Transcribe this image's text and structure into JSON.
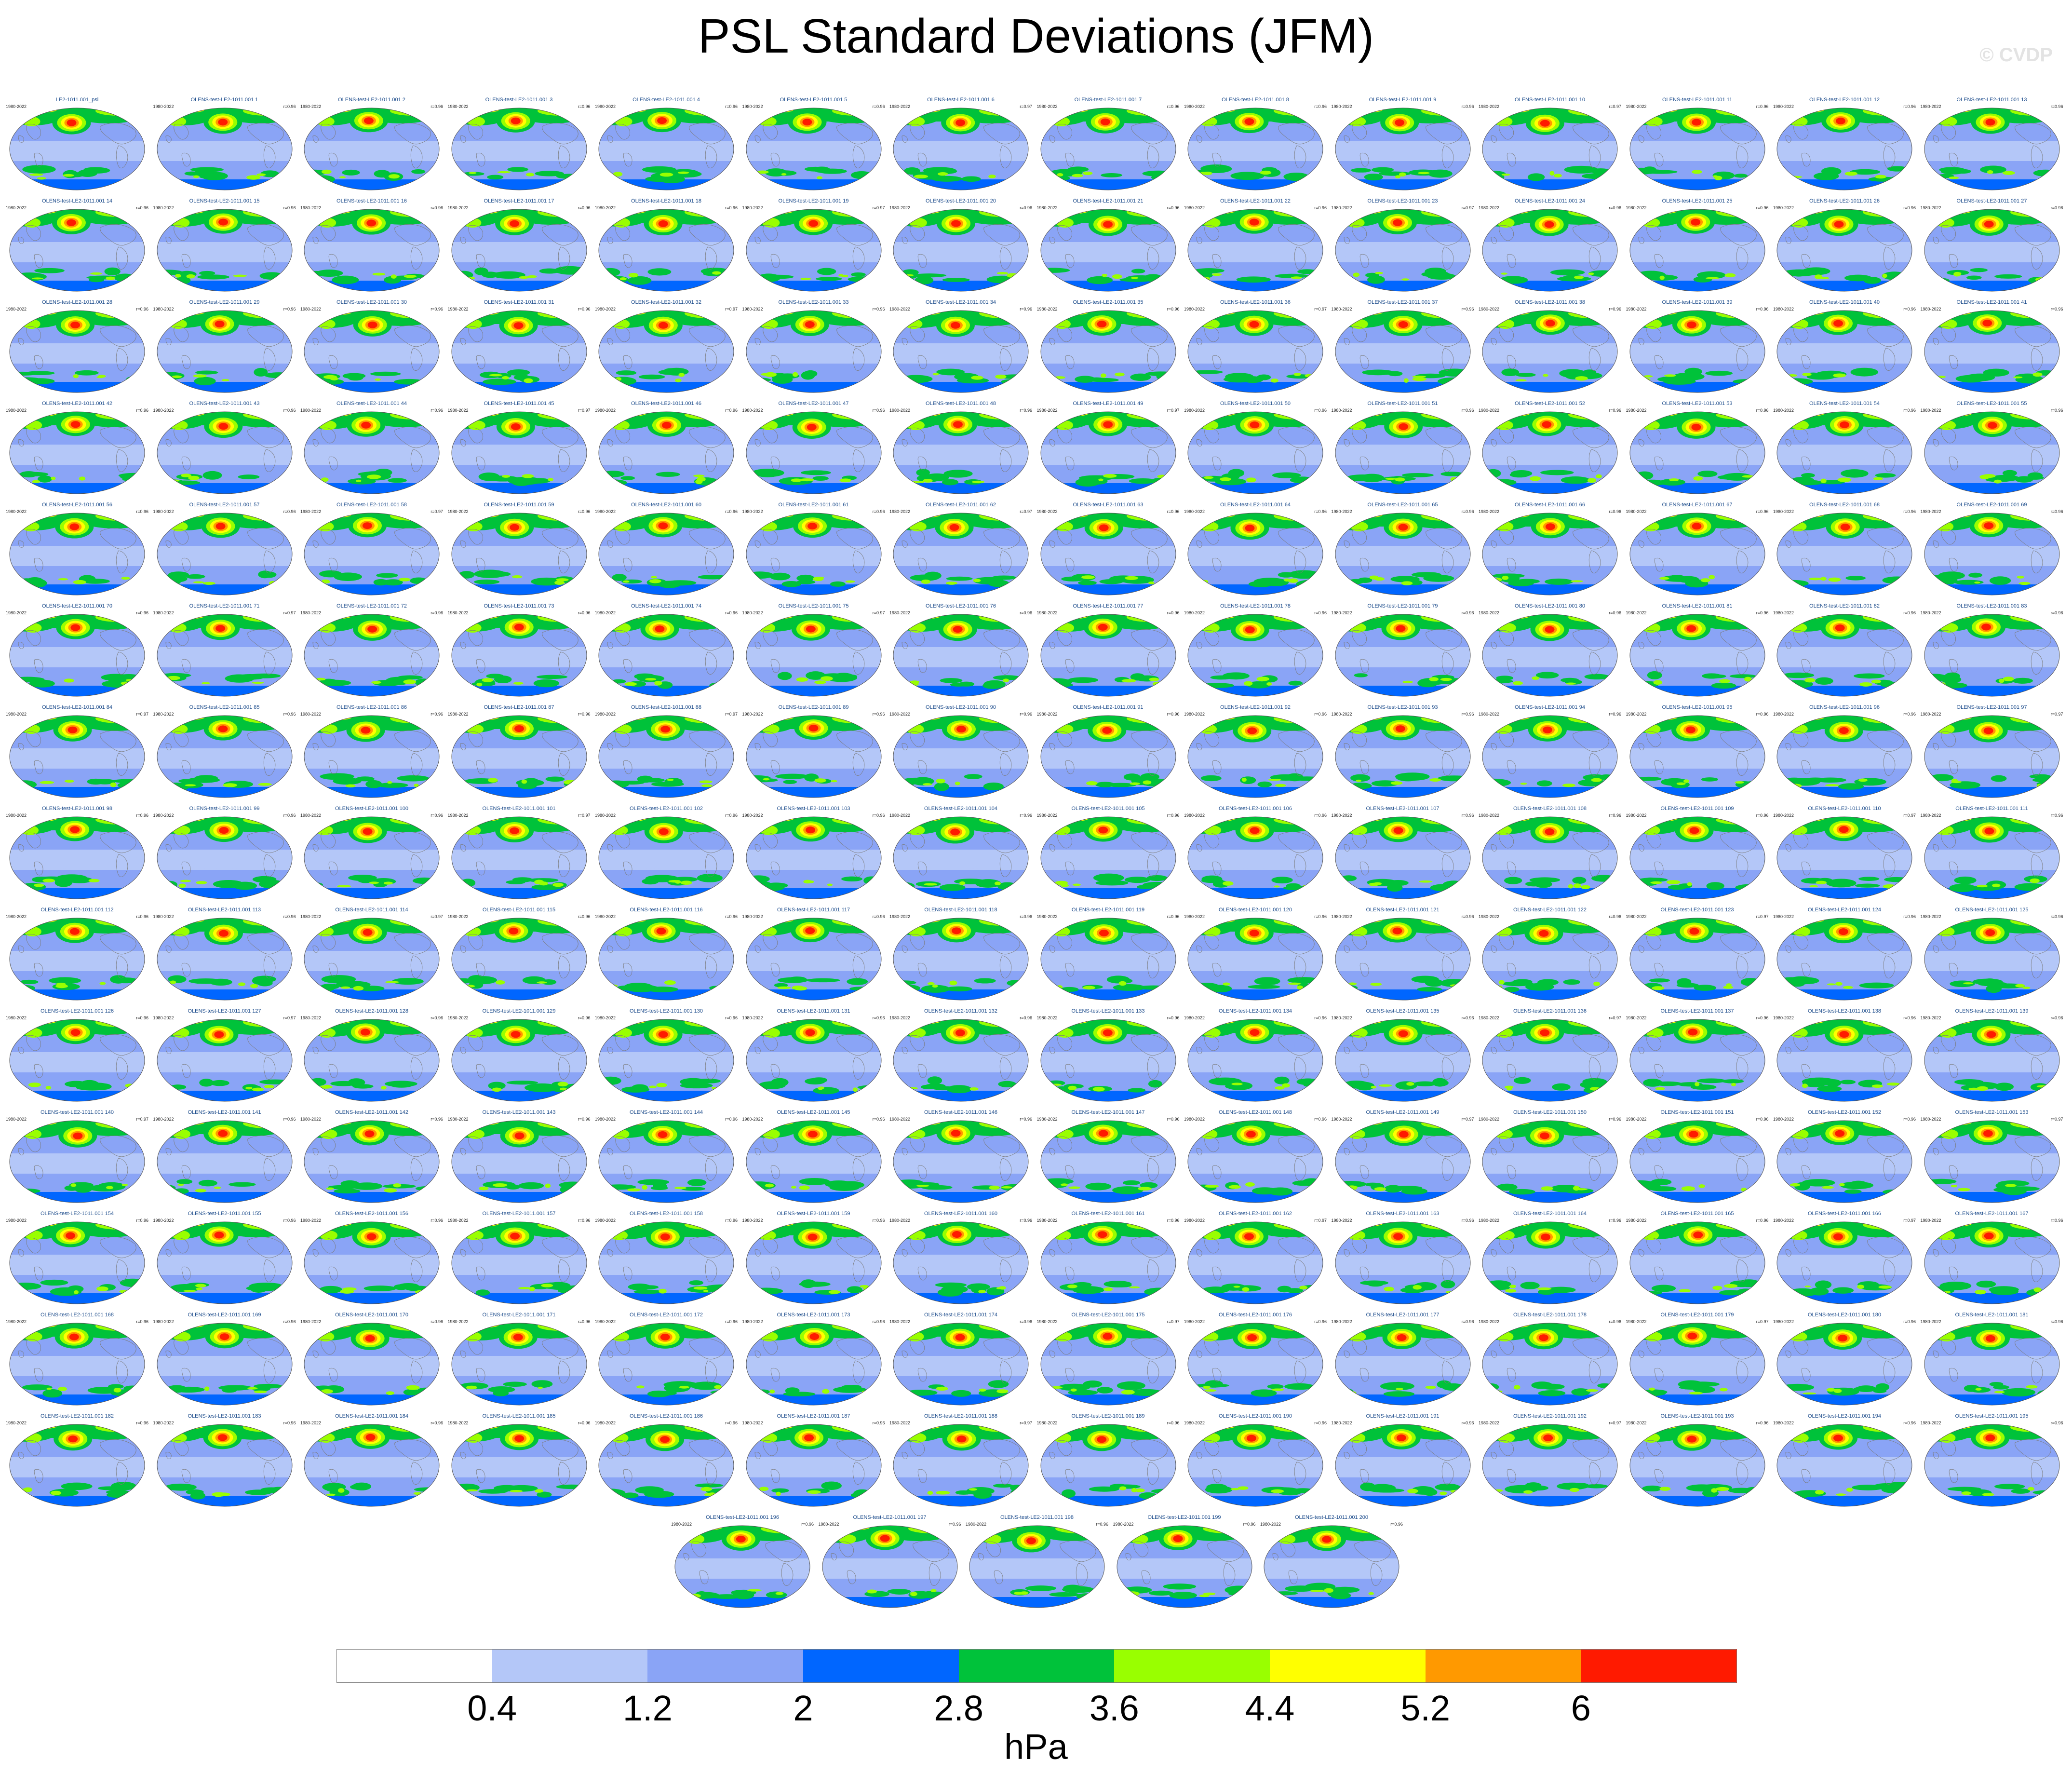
{
  "title": "PSL Standard Deviations (JFM)",
  "watermark": "© CVDP",
  "panels": {
    "first_title": "LE2-1011.001_psl",
    "title_prefix": "OLENS-test-LE2-1011.001",
    "period": "1980-2022",
    "correlations": [
      "r=0.96",
      "r=0.96",
      "r=0.96",
      "r=0.96",
      "r=0.96",
      "r=0.96",
      "r=0.97",
      "r=0.96",
      "r=0.96",
      "r=0.96",
      "r=0.97",
      "r=0.96",
      "r=0.96"
    ],
    "count": 201
  },
  "colorbar": {
    "colors": [
      "#ffffff",
      "#b4c7f8",
      "#8aa4f6",
      "#0066ff",
      "#00c23a",
      "#99ff00",
      "#ffff00",
      "#ff9900",
      "#ff1a00"
    ],
    "ticks": [
      "0.4",
      "1.2",
      "2",
      "2.8",
      "3.6",
      "4.4",
      "5.2",
      "6"
    ],
    "units": "hPa"
  }
}
